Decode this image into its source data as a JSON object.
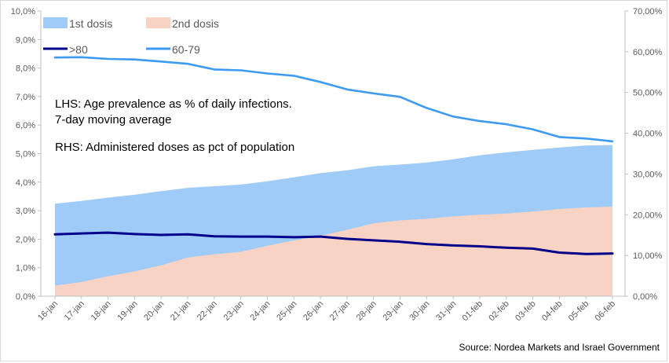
{
  "chart_data": {
    "type": "area+line",
    "categories": [
      "16-jan",
      "17-jan",
      "18-jan",
      "19-jan",
      "20-jan",
      "21-jan",
      "22-jan",
      "23-jan",
      "24-jan",
      "25-jan",
      "26-jan",
      "27-jan",
      "28-jan",
      "29-jan",
      "30-jan",
      "31-jan",
      "01-feb",
      "02-feb",
      "03-feb",
      "04-feb",
      "05-feb",
      "06-feb"
    ],
    "left_axis": {
      "ylim": [
        0,
        10
      ],
      "ticks": [
        "0,0%",
        "1,0%",
        "2,0%",
        "3,0%",
        "4,0%",
        "5,0%",
        "6,0%",
        "7,0%",
        "8,0%",
        "9,0%",
        "10,0%"
      ]
    },
    "right_axis": {
      "ylim": [
        0,
        70
      ],
      "ticks": [
        "0,00%",
        "10,00%",
        "20,00%",
        "30,00%",
        "40,00%",
        "50,00%",
        "60,00%",
        "70,00%"
      ]
    },
    "area_series": [
      {
        "name": "1st dosis",
        "axis": "right",
        "color": "#9ecbf7",
        "values": [
          22.7,
          23.4,
          24.2,
          24.9,
          25.8,
          26.6,
          27.0,
          27.4,
          28.2,
          29.2,
          30.2,
          30.9,
          31.9,
          32.3,
          32.8,
          33.6,
          34.6,
          35.3,
          35.9,
          36.5,
          37.0,
          37.1
        ]
      },
      {
        "name": "2nd dosis",
        "axis": "right",
        "color": "#f8d3c3",
        "values": [
          2.6,
          3.5,
          4.9,
          6.1,
          7.6,
          9.5,
          10.3,
          10.9,
          12.4,
          13.7,
          14.8,
          16.3,
          17.9,
          18.6,
          19.0,
          19.6,
          20.0,
          20.3,
          20.8,
          21.4,
          21.8,
          22.0
        ]
      }
    ],
    "line_series": [
      {
        "name": ">80",
        "axis": "left",
        "color": "#00008b",
        "values": [
          2.17,
          2.2,
          2.23,
          2.18,
          2.15,
          2.17,
          2.1,
          2.09,
          2.09,
          2.07,
          2.09,
          2.01,
          1.96,
          1.91,
          1.83,
          1.78,
          1.75,
          1.7,
          1.67,
          1.53,
          1.48,
          1.5
        ]
      },
      {
        "name": "60-79",
        "axis": "left",
        "color": "#3c9af0",
        "values": [
          8.37,
          8.38,
          8.32,
          8.3,
          8.23,
          8.15,
          7.95,
          7.92,
          7.81,
          7.73,
          7.51,
          7.25,
          7.11,
          6.99,
          6.6,
          6.3,
          6.14,
          6.03,
          5.85,
          5.58,
          5.53,
          5.43
        ]
      }
    ],
    "annotations": [
      "LHS: Age prevalence as % of daily infections.",
      "7-day moving average",
      "RHS:  Administered doses as pct of population"
    ],
    "source": "Source: Nordea Markets and Israel Government",
    "grid": false,
    "legend_position": "top-left"
  }
}
